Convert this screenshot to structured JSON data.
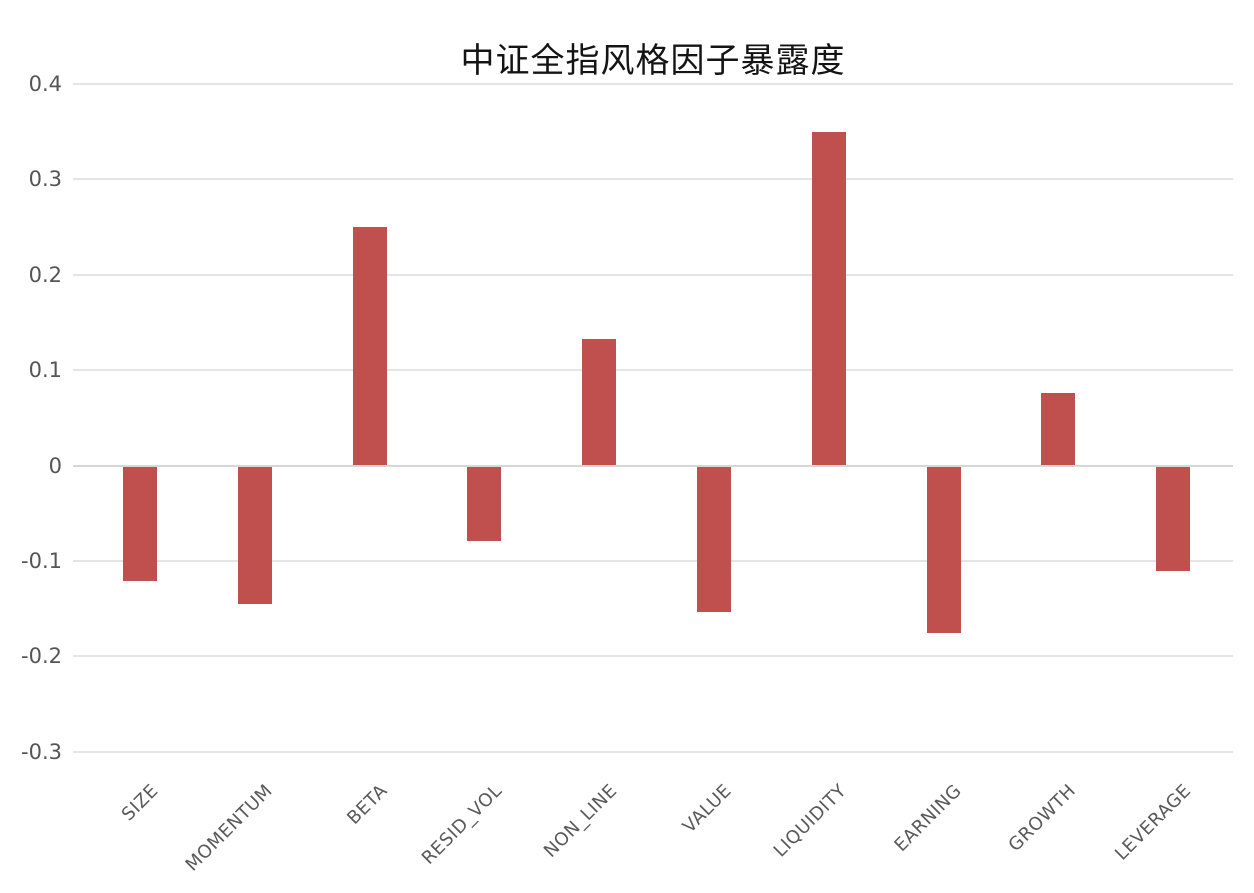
{
  "chart_data": {
    "type": "bar",
    "title": "中证全指风格因子暴露度",
    "categories": [
      "SIZE",
      "MOMENTUM",
      "BETA",
      "RESID_VOL",
      "NON_LINE",
      "VALUE",
      "LIQUIDITY",
      "EARNING",
      "GROWTH",
      "LEVERAGE"
    ],
    "values": [
      -0.12,
      -0.144,
      0.25,
      -0.078,
      0.133,
      -0.153,
      0.35,
      -0.175,
      0.076,
      -0.11
    ],
    "yticks": [
      0.4,
      0.3,
      0.2,
      0.1,
      0,
      -0.1,
      -0.2,
      -0.3
    ],
    "ytick_labels": [
      "0.4",
      "0.3",
      "0.2",
      "0.1",
      "0",
      "-0.1",
      "-0.2",
      "-0.3"
    ],
    "ylim": [
      -0.3,
      0.4
    ],
    "xlabel": "",
    "ylabel": "",
    "grid": true,
    "legend_position": "none",
    "bar_color": "#c0504d",
    "gridline_color": "#e5e5e5",
    "zero_line_color": "#d7d7d7",
    "tick_label_color": "#595959",
    "title_color": "#141414",
    "background_color": "#ffffff"
  }
}
